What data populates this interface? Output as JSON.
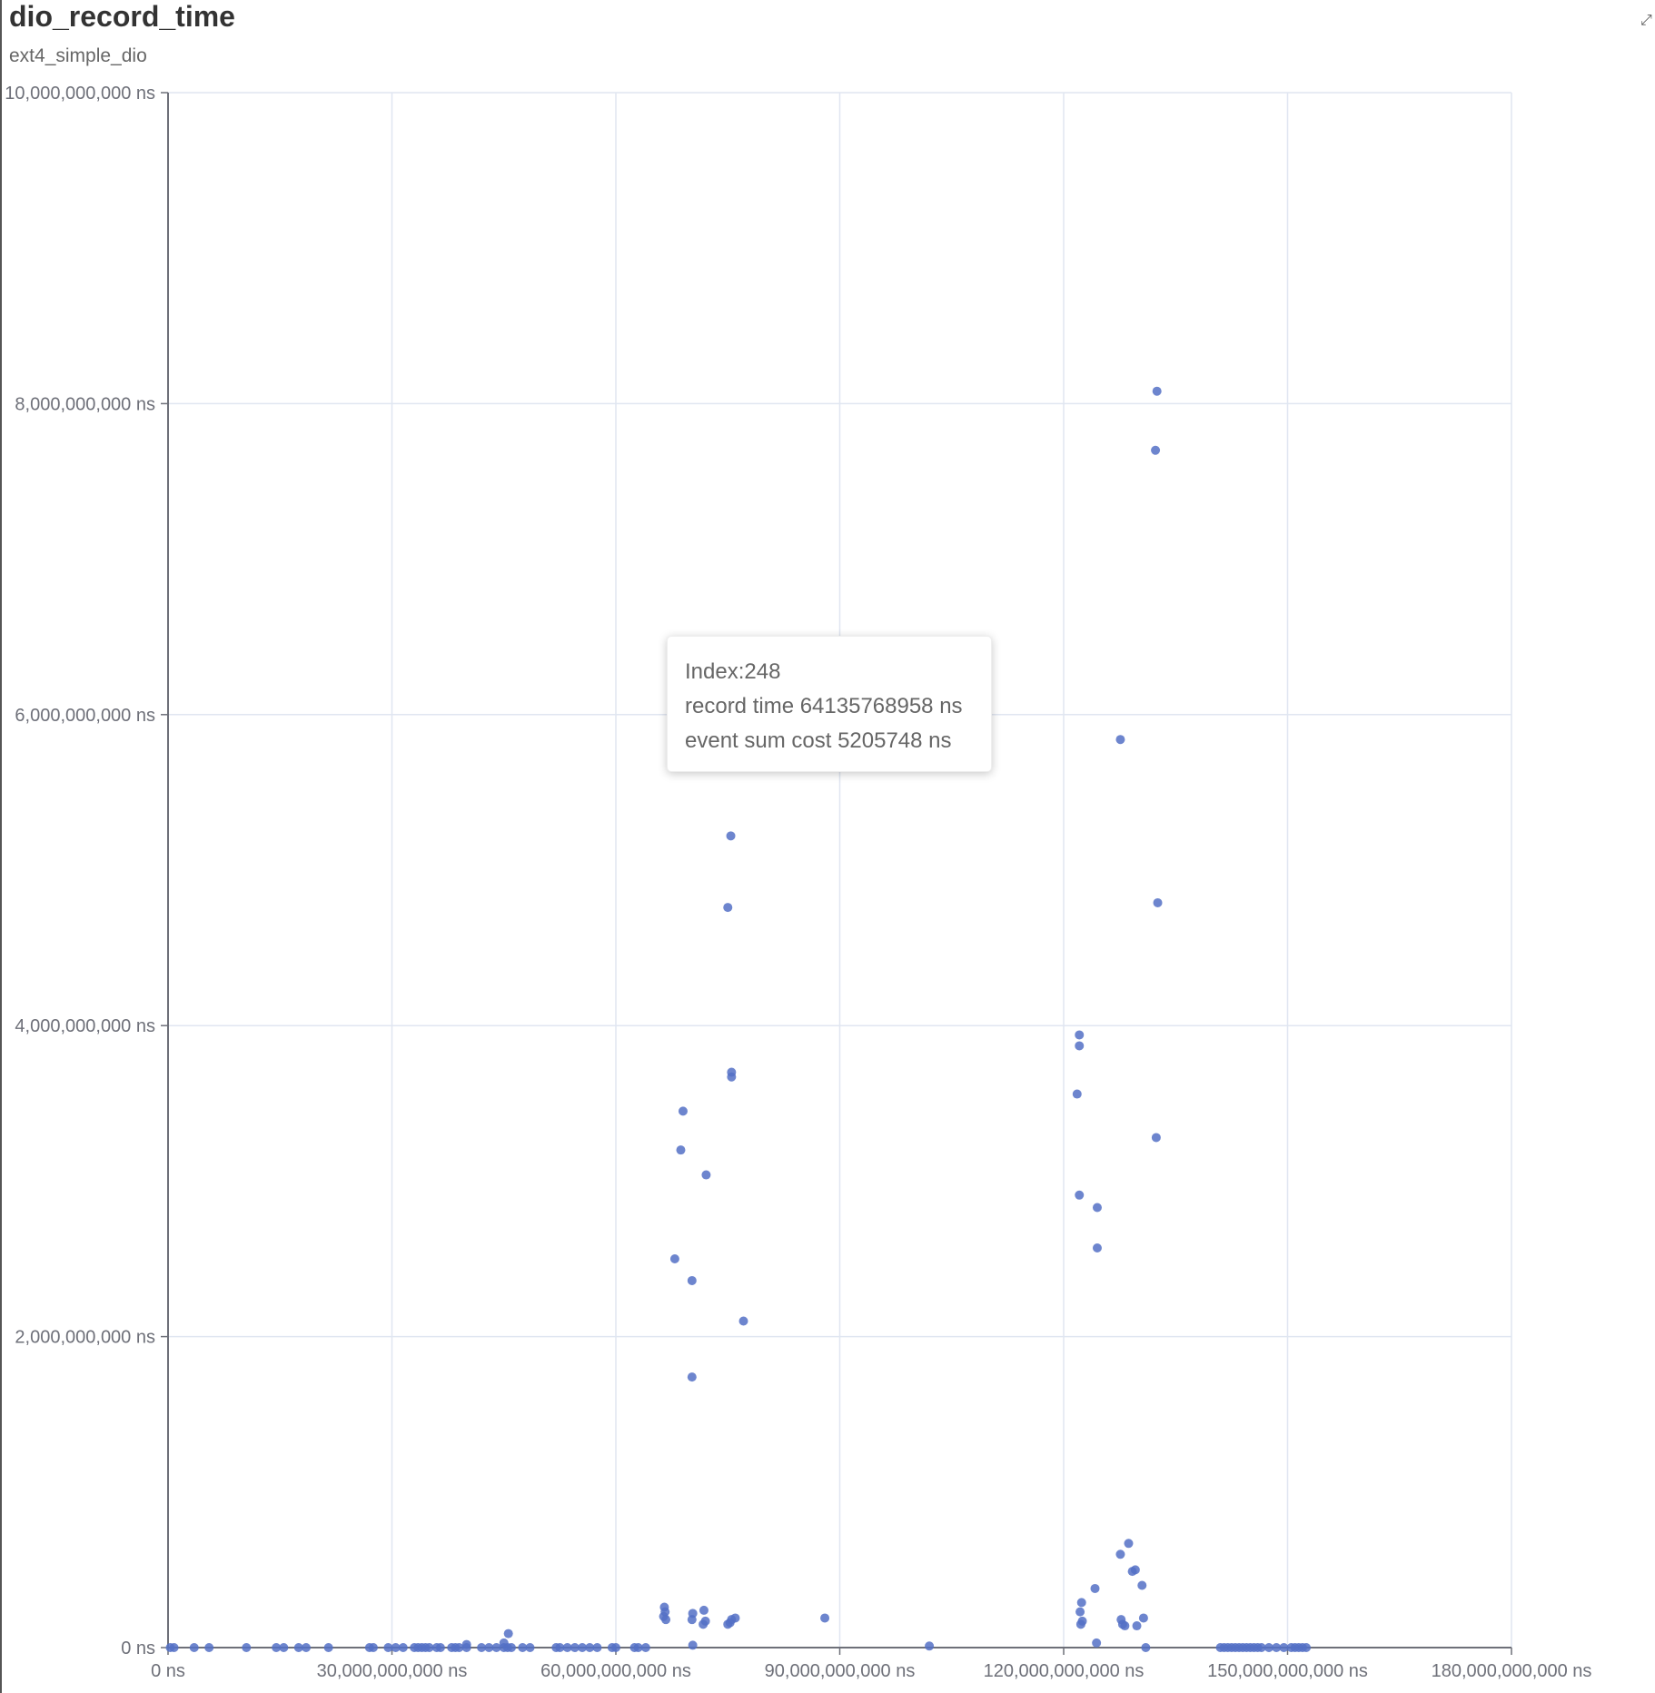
{
  "header": {
    "title": "dio_record_time",
    "subtitle": "ext4_simple_dio"
  },
  "tooltip": {
    "index": "Index:248",
    "record_time": "record time 64135768958 ns",
    "event_sum_cost": "event sum cost 5205748 ns"
  },
  "colors": {
    "point": "#5470c6",
    "grid": "#e0e6f1",
    "axis": "#6e7079"
  },
  "icons": {
    "expand": "expand-icon"
  },
  "chart_data": {
    "type": "scatter",
    "title": "dio_record_time",
    "subtitle": "ext4_simple_dio",
    "xlabel": "",
    "ylabel": "",
    "xlim": [
      0,
      180000000000
    ],
    "ylim": [
      0,
      10000000000
    ],
    "x_ticks": [
      0,
      30000000000,
      60000000000,
      90000000000,
      120000000000,
      150000000000,
      180000000000
    ],
    "y_ticks": [
      0,
      2000000000,
      4000000000,
      6000000000,
      8000000000,
      10000000000
    ],
    "x_tick_labels": [
      "0 ns",
      "30,000,000,000 ns",
      "60,000,000,000 ns",
      "90,000,000,000 ns",
      "120,000,000,000 ns",
      "150,000,000,000 ns",
      "180,000,000,000 ns"
    ],
    "y_tick_labels": [
      "0 ns",
      "2,000,000,000 ns",
      "4,000,000,000 ns",
      "6,000,000,000 ns",
      "8,000,000,000 ns",
      "10,000,000,000 ns"
    ],
    "grid": true,
    "series": [
      {
        "points": [
          [
            300000000,
            0
          ],
          [
            800000000,
            0
          ],
          [
            3500000000,
            0
          ],
          [
            5500000000,
            0
          ],
          [
            10500000000,
            0
          ],
          [
            14500000000,
            0
          ],
          [
            15500000000,
            0
          ],
          [
            17500000000,
            0
          ],
          [
            18500000000,
            0
          ],
          [
            21500000000,
            0
          ],
          [
            27000000000,
            0
          ],
          [
            27500000000,
            0
          ],
          [
            29500000000,
            0
          ],
          [
            30500000000,
            0
          ],
          [
            31500000000,
            0
          ],
          [
            33000000000,
            0
          ],
          [
            33500000000,
            0
          ],
          [
            34000000000,
            0
          ],
          [
            34500000000,
            0
          ],
          [
            35000000000,
            0
          ],
          [
            36000000000,
            0
          ],
          [
            36500000000,
            0
          ],
          [
            38000000000,
            0
          ],
          [
            38500000000,
            0
          ],
          [
            39000000000,
            0
          ],
          [
            40000000000,
            0
          ],
          [
            42000000000,
            0
          ],
          [
            43000000000,
            0
          ],
          [
            44000000000,
            0
          ],
          [
            45000000000,
            0
          ],
          [
            45500000000,
            0
          ],
          [
            46000000000,
            0
          ],
          [
            47500000000,
            0
          ],
          [
            48500000000,
            0
          ],
          [
            45600000000,
            90000000
          ],
          [
            45000000000,
            30000000
          ],
          [
            40000000000,
            20000000
          ],
          [
            52000000000,
            0
          ],
          [
            52500000000,
            0
          ],
          [
            53500000000,
            0
          ],
          [
            54500000000,
            0
          ],
          [
            55500000000,
            0
          ],
          [
            56500000000,
            0
          ],
          [
            57500000000,
            0
          ],
          [
            59500000000,
            0
          ],
          [
            60000000000,
            0
          ],
          [
            62500000000,
            0
          ],
          [
            63000000000,
            0
          ],
          [
            64000000000,
            0
          ],
          [
            66500000000,
            260000000
          ],
          [
            66600000000,
            230000000
          ],
          [
            66400000000,
            200000000
          ],
          [
            66700000000,
            180000000
          ],
          [
            70300000000,
            220000000
          ],
          [
            70200000000,
            180000000
          ],
          [
            71800000000,
            240000000
          ],
          [
            72000000000,
            170000000
          ],
          [
            71700000000,
            150000000
          ],
          [
            75000000000,
            150000000
          ],
          [
            75500000000,
            180000000
          ],
          [
            76000000000,
            190000000
          ],
          [
            75300000000,
            160000000
          ],
          [
            70300000000,
            15000000
          ],
          [
            67900000000,
            2500000000
          ],
          [
            68700000000,
            3200000000
          ],
          [
            69000000000,
            3450000000
          ],
          [
            70200000000,
            2360000000
          ],
          [
            70200000000,
            1740000000
          ],
          [
            72100000000,
            3040000000
          ],
          [
            75000000000,
            4760000000
          ],
          [
            75400000000,
            5220000000
          ],
          [
            75500000000,
            3700000000
          ],
          [
            75500000000,
            3670000000
          ],
          [
            77100000000,
            2100000000
          ],
          [
            88000000000,
            190000000
          ],
          [
            102000000000,
            10000000
          ],
          [
            121800000000,
            3560000000
          ],
          [
            122100000000,
            3940000000
          ],
          [
            122100000000,
            3870000000
          ],
          [
            122100000000,
            2910000000
          ],
          [
            124500000000,
            2830000000
          ],
          [
            124500000000,
            2570000000
          ],
          [
            127600000000,
            5840000000
          ],
          [
            132500000000,
            8080000000
          ],
          [
            132300000000,
            7700000000
          ],
          [
            132600000000,
            4790000000
          ],
          [
            132400000000,
            3280000000
          ],
          [
            122200000000,
            230000000
          ],
          [
            122400000000,
            290000000
          ],
          [
            122300000000,
            150000000
          ],
          [
            122500000000,
            170000000
          ],
          [
            124200000000,
            380000000
          ],
          [
            124400000000,
            30000000
          ],
          [
            127600000000,
            600000000
          ],
          [
            128700000000,
            670000000
          ],
          [
            129200000000,
            490000000
          ],
          [
            129600000000,
            500000000
          ],
          [
            130500000000,
            400000000
          ],
          [
            127700000000,
            180000000
          ],
          [
            127900000000,
            150000000
          ],
          [
            128200000000,
            140000000
          ],
          [
            129800000000,
            140000000
          ],
          [
            130700000000,
            190000000
          ],
          [
            131000000000,
            0
          ],
          [
            141000000000,
            0
          ],
          [
            141500000000,
            0
          ],
          [
            142000000000,
            0
          ],
          [
            142500000000,
            0
          ],
          [
            143000000000,
            0
          ],
          [
            143500000000,
            0
          ],
          [
            144000000000,
            0
          ],
          [
            144500000000,
            0
          ],
          [
            145000000000,
            0
          ],
          [
            145500000000,
            0
          ],
          [
            146000000000,
            0
          ],
          [
            146500000000,
            0
          ],
          [
            147500000000,
            0
          ],
          [
            148500000000,
            0
          ],
          [
            149500000000,
            0
          ],
          [
            150500000000,
            0
          ],
          [
            151000000000,
            0
          ],
          [
            151500000000,
            0
          ],
          [
            152000000000,
            0
          ],
          [
            152500000000,
            0
          ]
        ]
      }
    ]
  }
}
